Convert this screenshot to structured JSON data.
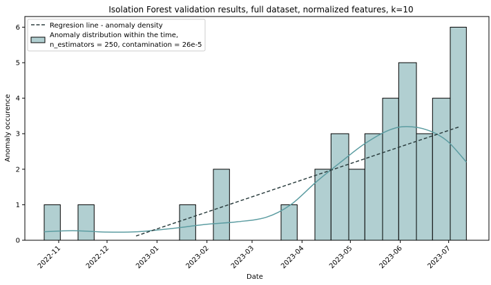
{
  "chart_data": {
    "type": "bar",
    "title": "Isolation Forest validation results, full dataset, normalized features, k=10",
    "xlabel": "Date",
    "ylabel": "Anomaly occurence",
    "x_ticks": [
      "2022-11",
      "2022-12",
      "2023-01",
      "2023-02",
      "2023-03",
      "2023-04",
      "2023-05",
      "2023-06",
      "2023-07"
    ],
    "x_tick_dates": [
      "2022-11-01",
      "2022-12-01",
      "2023-01-01",
      "2023-02-01",
      "2023-03-01",
      "2023-04-01",
      "2023-05-01",
      "2023-06-01",
      "2023-07-01"
    ],
    "xlim": [
      "2022-10-11",
      "2023-07-26"
    ],
    "ylim": [
      0,
      6.3
    ],
    "y_ticks": [
      0,
      1,
      2,
      3,
      4,
      5,
      6
    ],
    "bins": [
      {
        "start": "2022-10-23",
        "end": "2022-11-02",
        "count": 1
      },
      {
        "start": "2022-11-02",
        "end": "2022-11-13",
        "count": 0
      },
      {
        "start": "2022-11-13",
        "end": "2022-11-23",
        "count": 1
      },
      {
        "start": "2022-11-23",
        "end": "2022-12-04",
        "count": 0
      },
      {
        "start": "2022-12-04",
        "end": "2022-12-14",
        "count": 0
      },
      {
        "start": "2022-12-14",
        "end": "2022-12-25",
        "count": 0
      },
      {
        "start": "2022-12-25",
        "end": "2023-01-04",
        "count": 0
      },
      {
        "start": "2023-01-04",
        "end": "2023-01-15",
        "count": 0
      },
      {
        "start": "2023-01-15",
        "end": "2023-01-25",
        "count": 1
      },
      {
        "start": "2023-01-25",
        "end": "2023-02-05",
        "count": 0
      },
      {
        "start": "2023-02-05",
        "end": "2023-02-15",
        "count": 2
      },
      {
        "start": "2023-02-15",
        "end": "2023-02-26",
        "count": 0
      },
      {
        "start": "2023-02-26",
        "end": "2023-03-08",
        "count": 0
      },
      {
        "start": "2023-03-08",
        "end": "2023-03-19",
        "count": 0
      },
      {
        "start": "2023-03-19",
        "end": "2023-03-29",
        "count": 1
      },
      {
        "start": "2023-03-29",
        "end": "2023-04-09",
        "count": 0
      },
      {
        "start": "2023-04-09",
        "end": "2023-04-19",
        "count": 2
      },
      {
        "start": "2023-04-19",
        "end": "2023-04-30",
        "count": 3
      },
      {
        "start": "2023-04-30",
        "end": "2023-05-10",
        "count": 2
      },
      {
        "start": "2023-05-10",
        "end": "2023-05-21",
        "count": 3
      },
      {
        "start": "2023-05-21",
        "end": "2023-05-31",
        "count": 4
      },
      {
        "start": "2023-05-31",
        "end": "2023-06-11",
        "count": 5
      },
      {
        "start": "2023-06-11",
        "end": "2023-06-21",
        "count": 3
      },
      {
        "start": "2023-06-21",
        "end": "2023-07-02",
        "count": 4
      },
      {
        "start": "2023-07-02",
        "end": "2023-07-12",
        "count": 6
      }
    ],
    "kde_curve": [
      {
        "x": "2022-10-23",
        "y": 0.24
      },
      {
        "x": "2022-11-10",
        "y": 0.27
      },
      {
        "x": "2022-12-01",
        "y": 0.23
      },
      {
        "x": "2022-12-20",
        "y": 0.24
      },
      {
        "x": "2023-01-10",
        "y": 0.33
      },
      {
        "x": "2023-02-01",
        "y": 0.45
      },
      {
        "x": "2023-02-20",
        "y": 0.52
      },
      {
        "x": "2023-03-10",
        "y": 0.65
      },
      {
        "x": "2023-03-25",
        "y": 1.0
      },
      {
        "x": "2023-04-10",
        "y": 1.65
      },
      {
        "x": "2023-04-25",
        "y": 2.2
      },
      {
        "x": "2023-05-10",
        "y": 2.72
      },
      {
        "x": "2023-05-25",
        "y": 3.1
      },
      {
        "x": "2023-06-05",
        "y": 3.2
      },
      {
        "x": "2023-06-18",
        "y": 3.1
      },
      {
        "x": "2023-06-30",
        "y": 2.8
      },
      {
        "x": "2023-07-12",
        "y": 2.2
      }
    ],
    "regression_line": [
      {
        "x": "2022-12-19",
        "y": 0.12
      },
      {
        "x": "2023-07-08",
        "y": 3.2
      }
    ],
    "legend": [
      {
        "label": "Regresion line - anomaly density",
        "style": "dashed"
      },
      {
        "label": "Anomaly distribution within the time,",
        "label2": "n_estimators = 250, contamination = 26e-5",
        "style": "bar"
      }
    ],
    "legend_placement": "top-left",
    "grid": false,
    "colors": {
      "bar_fill": "#b1cfd1",
      "bar_stroke": "#000000",
      "kde_line": "#5b9ca1",
      "regression_line": "#2b3d3e"
    }
  }
}
